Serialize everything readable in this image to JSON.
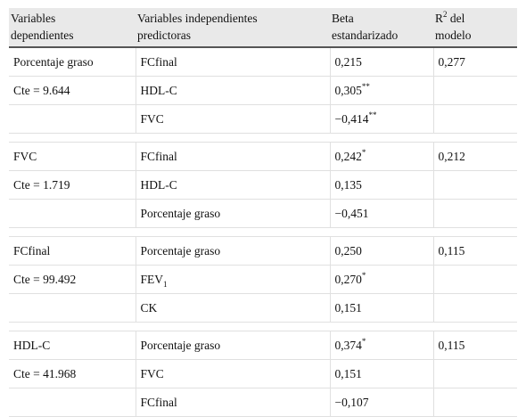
{
  "headers": {
    "dep_line1": "Variables",
    "dep_line2": "dependientes",
    "indep_line1": "Variables independientes",
    "indep_line2": "predictoras",
    "beta_line1": "Beta",
    "beta_line2": "estandarizado",
    "r2_base": "R",
    "r2_exp": "2",
    "r2_rest": " del",
    "r2_line2": "modelo"
  },
  "groups": [
    {
      "dependent": "Porcentaje graso",
      "constant": "Cte = 9.644",
      "r2": "0,277",
      "rows": [
        {
          "predictor": "FCfinal",
          "beta": "0,215",
          "sig": ""
        },
        {
          "predictor": "HDL-C",
          "beta": "0,305",
          "sig": "**"
        },
        {
          "predictor": "FVC",
          "beta": "−0,414",
          "sig": "**"
        }
      ]
    },
    {
      "dependent": "FVC",
      "constant": "Cte = 1.719",
      "r2": "0,212",
      "rows": [
        {
          "predictor": "FCfinal",
          "beta": "0,242",
          "sig": "*"
        },
        {
          "predictor": "HDL-C",
          "beta": "0,135",
          "sig": ""
        },
        {
          "predictor": "Porcentaje graso",
          "beta": "−0,451",
          "sig": ""
        }
      ]
    },
    {
      "dependent": "FCfinal",
      "constant": "Cte = 99.492",
      "r2": "0,115",
      "rows": [
        {
          "predictor": "Porcentaje graso",
          "beta": "0,250",
          "sig": ""
        },
        {
          "predictor": "FEV",
          "predictor_sub": "1",
          "beta": "0,270",
          "sig": "*"
        },
        {
          "predictor": "CK",
          "beta": "0,151",
          "sig": ""
        }
      ]
    },
    {
      "dependent": "HDL-C",
      "constant": "Cte = 41.968",
      "r2": "0,115",
      "rows": [
        {
          "predictor": "Porcentaje graso",
          "beta": "0,374",
          "sig": "*"
        },
        {
          "predictor": "FVC",
          "beta": "0,151",
          "sig": ""
        },
        {
          "predictor": "FCfinal",
          "beta": "−0,107",
          "sig": ""
        }
      ]
    }
  ]
}
